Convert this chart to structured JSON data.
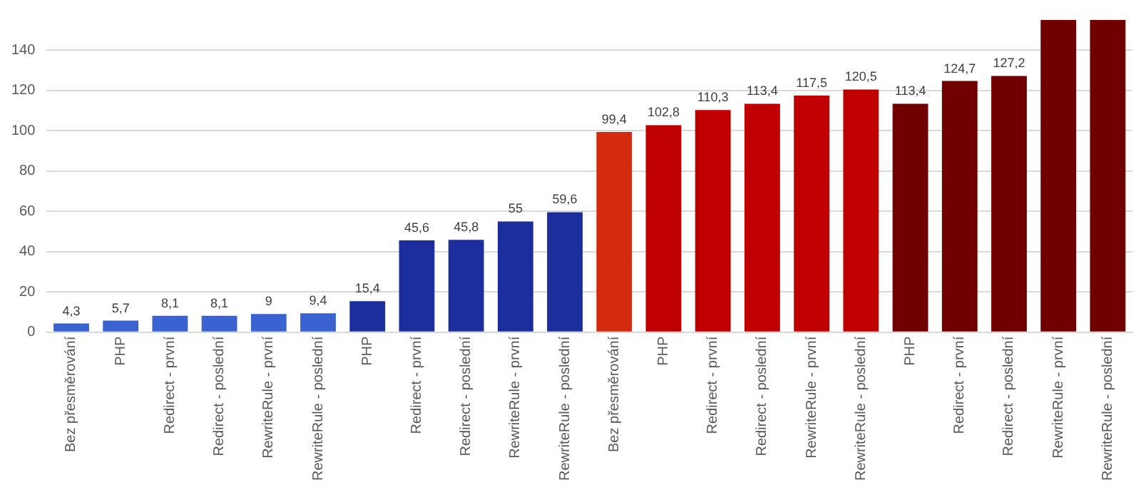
{
  "chart_data": {
    "type": "bar",
    "categories": [
      "Bez přesměrování",
      "PHP",
      "Redirect - první",
      "Redirect - poslední",
      "RewriteRule - první",
      "RewriteRule - poslední",
      "PHP",
      "Redirect - první",
      "Redirect - poslední",
      "RewriteRule - první",
      "RewriteRule - poslední",
      "Bez přesměrování",
      "PHP",
      "Redirect - první",
      "Redirect - poslední",
      "RewriteRule - první",
      "RewriteRule - poslední",
      "PHP",
      "Redirect - první",
      "Redirect - poslední",
      "RewriteRule - první",
      "RewriteRule - poslední"
    ],
    "values": [
      4.3,
      5.7,
      8.1,
      8.1,
      9,
      9.4,
      15.4,
      45.6,
      45.8,
      55,
      59.6,
      99.4,
      102.8,
      110.3,
      113.4,
      117.5,
      120.5,
      113.4,
      124.7,
      127.2,
      155,
      155
    ],
    "value_labels": [
      "4,3",
      "5,7",
      "8,1",
      "8,1",
      "9",
      "9,4",
      "15,4",
      "45,6",
      "45,8",
      "55",
      "59,6",
      "99,4",
      "102,8",
      "110,3",
      "113,4",
      "117,5",
      "120,5",
      "113,4",
      "124,7",
      "127,2",
      null,
      null
    ],
    "colors": [
      "#3a62d0",
      "#3a62d0",
      "#3a62d0",
      "#3a62d0",
      "#3a62d0",
      "#3a62d0",
      "#1c2e9c",
      "#1c2e9c",
      "#1c2e9c",
      "#1c2e9c",
      "#1c2e9c",
      "#d42a10",
      "#c00000",
      "#c00000",
      "#c00000",
      "#c00000",
      "#c00000",
      "#700000",
      "#700000",
      "#700000",
      "#700000",
      "#700000"
    ],
    "ylim": [
      0,
      155
    ],
    "yticks": [
      0,
      20,
      40,
      60,
      80,
      100,
      120,
      140
    ],
    "grid": "y",
    "legend": false
  }
}
